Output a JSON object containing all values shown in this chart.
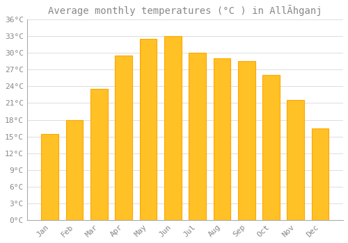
{
  "title": "Average monthly temperatures (°C ) in AllĀhganj",
  "months": [
    "Jan",
    "Feb",
    "Mar",
    "Apr",
    "May",
    "Jun",
    "Jul",
    "Aug",
    "Sep",
    "Oct",
    "Nov",
    "Dec"
  ],
  "values": [
    15.5,
    18.0,
    23.5,
    29.5,
    32.5,
    33.0,
    30.0,
    29.0,
    28.5,
    26.0,
    21.5,
    16.5
  ],
  "bar_color": "#FFC125",
  "bar_edge_color": "#FFA500",
  "background_color": "#FFFFFF",
  "grid_color": "#DDDDDD",
  "text_color": "#888888",
  "ylim": [
    0,
    36
  ],
  "ytick_step": 3,
  "title_fontsize": 10,
  "tick_fontsize": 8
}
